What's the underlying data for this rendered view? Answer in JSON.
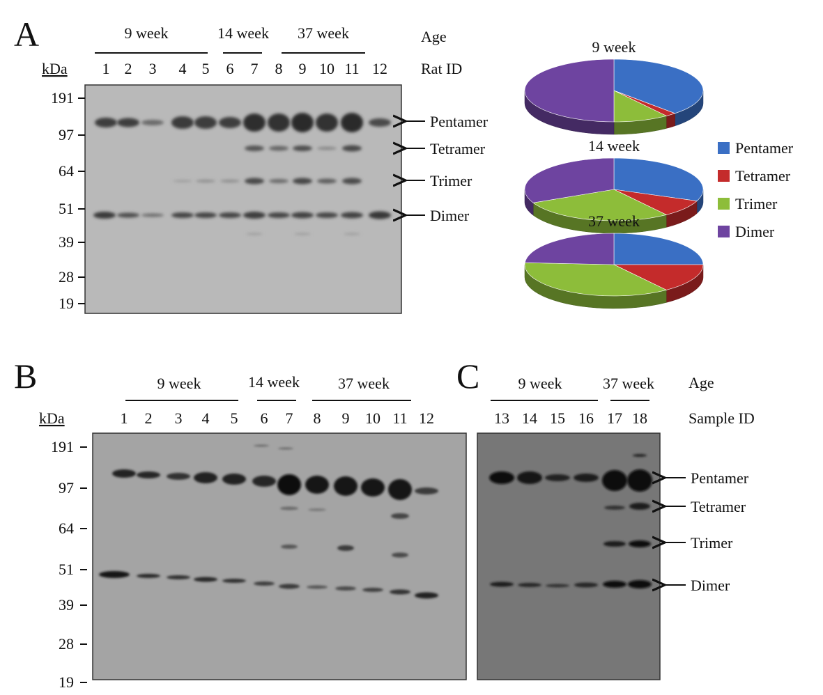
{
  "panels": {
    "A": {
      "letter": "A",
      "age_label": "Age",
      "id_label": "Rat ID",
      "kda_label": "kDa",
      "groups": [
        "9 week",
        "14 week",
        "37 week"
      ],
      "lanes": [
        "1",
        "2",
        "3",
        "4",
        "5",
        "6",
        "7",
        "8",
        "9",
        "10",
        "11",
        "12"
      ],
      "markers": [
        "191",
        "97",
        "64",
        "51",
        "39",
        "28",
        "19"
      ],
      "bands": [
        "Pentamer",
        "Tetramer",
        "Trimer",
        "Dimer"
      ]
    },
    "B": {
      "letter": "B",
      "kda_label": "kDa",
      "groups": [
        "9 week",
        "14 week",
        "37 week"
      ],
      "lanes": [
        "1",
        "2",
        "3",
        "4",
        "5",
        "6",
        "7",
        "8",
        "9",
        "10",
        "11",
        "12"
      ],
      "markers": [
        "191",
        "97",
        "64",
        "51",
        "39",
        "28",
        "19"
      ]
    },
    "C": {
      "letter": "C",
      "age_label": "Age",
      "id_label": "Sample ID",
      "groups": [
        "9 week",
        "37 week"
      ],
      "lanes": [
        "13",
        "14",
        "15",
        "16",
        "17",
        "18"
      ],
      "bands": [
        "Pentamer",
        "Tetramer",
        "Trimer",
        "Dimer"
      ]
    }
  },
  "pie_legend": [
    "Pentamer",
    "Tetramer",
    "Trimer",
    "Dimer"
  ],
  "colors": {
    "Pentamer": "#3a6fc4",
    "Tetramer": "#c42b2b",
    "Trimer": "#8dbd3a",
    "Dimer": "#6e44a0",
    "blot_bg_A": "#b9b9b9",
    "blot_bg_B": "#a4a4a4",
    "blot_bg_C": "#777777"
  },
  "chart_data": [
    {
      "type": "pie",
      "title": "9 week",
      "categories": [
        "Pentamer",
        "Tetramer",
        "Trimer",
        "Dimer"
      ],
      "values": [
        38,
        2,
        10,
        50
      ]
    },
    {
      "type": "pie",
      "title": "14 week",
      "categories": [
        "Pentamer",
        "Tetramer",
        "Trimer",
        "Dimer"
      ],
      "values": [
        31,
        9,
        28,
        32
      ]
    },
    {
      "type": "pie",
      "title": "37 week",
      "categories": [
        "Pentamer",
        "Tetramer",
        "Trimer",
        "Dimer"
      ],
      "values": [
        25,
        15,
        36,
        24
      ]
    }
  ]
}
